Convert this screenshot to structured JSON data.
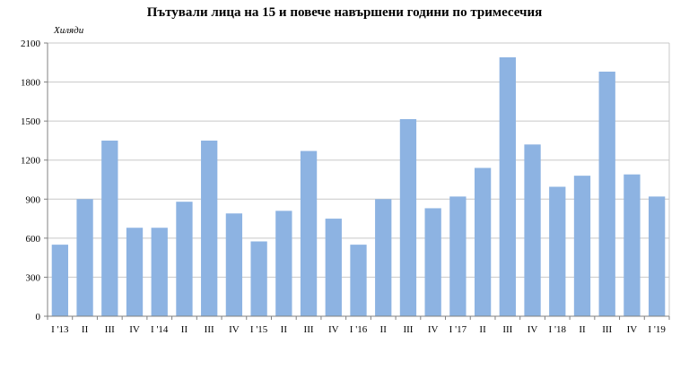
{
  "chart_data": {
    "type": "bar",
    "title": "Пътували лица на 15 и повече навършени години по тримесечия",
    "ylabel": "Хиляди",
    "xlabel": "",
    "ylim": [
      0,
      2100
    ],
    "yticks": [
      0,
      300,
      600,
      900,
      1200,
      1500,
      1800,
      2100
    ],
    "grid": true,
    "legend": "none",
    "bar_color": "#8db3e2",
    "categories": [
      "I '13",
      "II",
      "III",
      "IV",
      "I '14",
      "II",
      "III",
      "IV",
      "I '15",
      "II",
      "III",
      "IV",
      "I '16",
      "II",
      "III",
      "IV",
      "I '17",
      "II",
      "III",
      "IV",
      "I '18",
      "II",
      "III",
      "IV",
      "I '19"
    ],
    "values": [
      550,
      900,
      1350,
      680,
      680,
      880,
      1350,
      790,
      575,
      810,
      1270,
      750,
      550,
      900,
      1515,
      830,
      920,
      1140,
      1990,
      1320,
      995,
      1080,
      1880,
      1090,
      920
    ]
  }
}
